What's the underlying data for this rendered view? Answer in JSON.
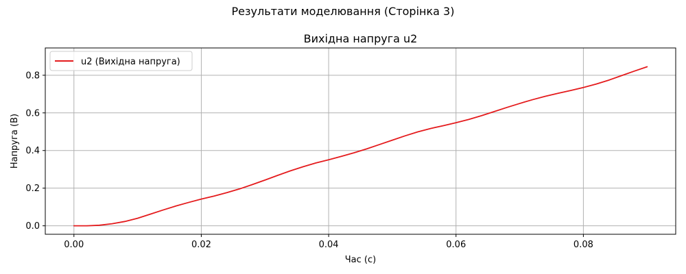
{
  "figure": {
    "suptitle": "Результати моделювання (Сторінка 3)"
  },
  "chart_data": {
    "type": "line",
    "title": "Вихідна напруга u2",
    "xlabel": "Час (с)",
    "ylabel": "Напруга (В)",
    "xlim": [
      -0.0045,
      0.0945
    ],
    "ylim": [
      -0.045,
      0.945
    ],
    "xticks": [
      0.0,
      0.02,
      0.04,
      0.06,
      0.08
    ],
    "xtick_labels": [
      "0.00",
      "0.02",
      "0.04",
      "0.06",
      "0.08"
    ],
    "yticks": [
      0.0,
      0.2,
      0.4,
      0.6,
      0.8
    ],
    "ytick_labels": [
      "0.0",
      "0.2",
      "0.4",
      "0.6",
      "0.8"
    ],
    "grid": true,
    "legend_position": "upper-left",
    "series": [
      {
        "name": "u2 (Вихідна напруга)",
        "color": "#e41a1c",
        "x": [
          0.0,
          0.002,
          0.004,
          0.006,
          0.008,
          0.01,
          0.012,
          0.014,
          0.016,
          0.018,
          0.02,
          0.022,
          0.024,
          0.026,
          0.028,
          0.03,
          0.032,
          0.034,
          0.036,
          0.038,
          0.04,
          0.042,
          0.044,
          0.046,
          0.048,
          0.05,
          0.052,
          0.054,
          0.056,
          0.058,
          0.06,
          0.062,
          0.064,
          0.066,
          0.068,
          0.07,
          0.072,
          0.074,
          0.076,
          0.078,
          0.08,
          0.082,
          0.084,
          0.086,
          0.088,
          0.09
        ],
        "y": [
          0.0,
          0.0,
          0.003,
          0.011,
          0.023,
          0.04,
          0.062,
          0.084,
          0.105,
          0.124,
          0.142,
          0.158,
          0.176,
          0.196,
          0.219,
          0.243,
          0.268,
          0.292,
          0.314,
          0.334,
          0.351,
          0.369,
          0.388,
          0.409,
          0.432,
          0.455,
          0.478,
          0.499,
          0.517,
          0.532,
          0.548,
          0.565,
          0.585,
          0.607,
          0.629,
          0.65,
          0.67,
          0.688,
          0.704,
          0.719,
          0.735,
          0.753,
          0.774,
          0.798,
          0.822,
          0.845
        ]
      }
    ]
  }
}
